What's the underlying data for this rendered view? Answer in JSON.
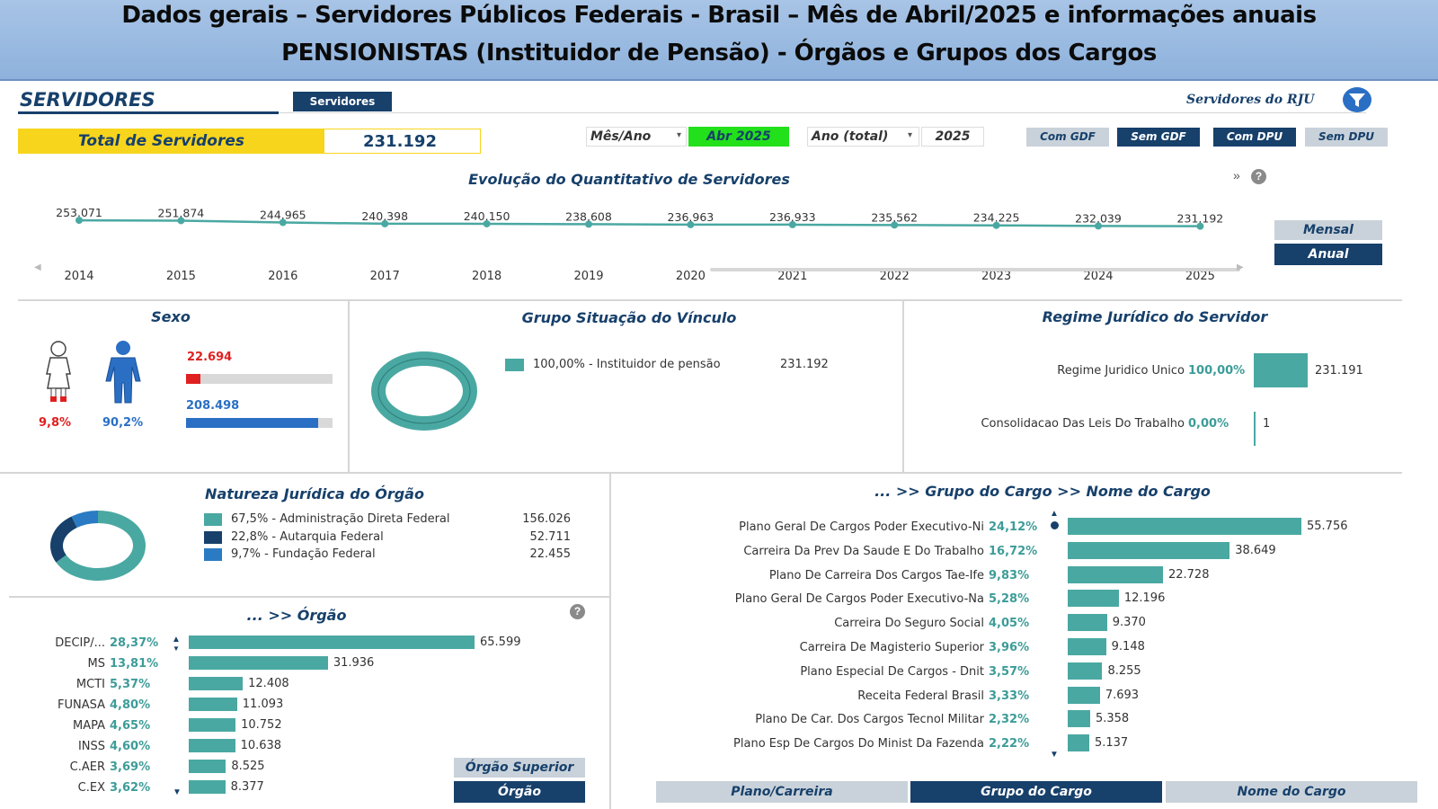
{
  "banner": {
    "line1": "Dados gerais – Servidores Públicos Federais - Brasil – Mês de Abril/2025 e informações anuais",
    "line2": "PENSIONISTAS (Instituidor de Pensão) - Órgãos e Grupos dos Cargos"
  },
  "header": {
    "title": "SERVIDORES",
    "tab_label": "Servidores",
    "rju_label": "Servidores do RJU",
    "total_label": "Total de Servidores",
    "total_value": "231.192",
    "mes_ano_label": "Mês/Ano",
    "mes_ano_value": "Abr 2025",
    "ano_label": "Ano (total)",
    "ano_value": "2025",
    "buttons": [
      "Com GDF",
      "Sem GDF",
      "Com DPU",
      "Sem DPU"
    ],
    "colors": {
      "navy": "#17406b",
      "teal": "#4aa8a2",
      "yellow": "#f7d51d",
      "green": "#22e01a"
    }
  },
  "evolucao": {
    "title": "Evolução do Quantitativo de Servidores",
    "mensal_label": "Mensal",
    "anual_label": "Anual",
    "expand_glyph": "»",
    "help_glyph": "?",
    "years": [
      "2014",
      "2015",
      "2016",
      "2017",
      "2018",
      "2019",
      "2020",
      "2021",
      "2022",
      "2023",
      "2024",
      "2025"
    ],
    "labels": [
      "253.071",
      "251.874",
      "244.965",
      "240.398",
      "240.150",
      "238.608",
      "236.963",
      "236.933",
      "235.562",
      "234.225",
      "232.039",
      "231.192"
    ],
    "values": [
      253071,
      251874,
      244965,
      240398,
      240150,
      238608,
      236963,
      236933,
      235562,
      234225,
      232039,
      231192
    ]
  },
  "sexo": {
    "title": "Sexo",
    "female_count": "22.694",
    "male_count": "208.498",
    "female_pct": "9,8%",
    "male_pct": "90,2%",
    "female_share": 0.098,
    "male_share": 0.902,
    "female_color": "#e02020",
    "male_color": "#2a6fc4"
  },
  "vinculo": {
    "title": "Grupo Situação do Vínculo",
    "legend_label": "100,00% - Instituidor de pensão",
    "legend_value": "231.192"
  },
  "regime": {
    "title": "Regime Jurídico do Servidor",
    "rows": [
      {
        "label": "Regime Juridico Unico",
        "pct": "100,00%",
        "value": "231.191",
        "share": 1.0
      },
      {
        "label": "Consolidacao Das Leis Do Trabalho",
        "pct": "0,00%",
        "value": "1",
        "share": 0.0
      }
    ]
  },
  "natureza": {
    "title": "Natureza Jurídica do Órgão",
    "items": [
      {
        "label": "67,5% - Administração Direta Federal",
        "value": "156.026",
        "share": 0.675,
        "color": "#4aa8a2"
      },
      {
        "label": "22,8% - Autarquia Federal",
        "value": "52.711",
        "share": 0.228,
        "color": "#17406b"
      },
      {
        "label": "9,7% - Fundação Federal",
        "value": "22.455",
        "share": 0.097,
        "color": "#2a7bc4"
      }
    ]
  },
  "orgao": {
    "title": "... >> Órgão",
    "help_glyph": "?",
    "rows": [
      {
        "label": "DECIP/...",
        "pct": "28,37%",
        "value": "65.599",
        "n": 65599
      },
      {
        "label": "MS",
        "pct": "13,81%",
        "value": "31.936",
        "n": 31936
      },
      {
        "label": "MCTI",
        "pct": "5,37%",
        "value": "12.408",
        "n": 12408
      },
      {
        "label": "FUNASA",
        "pct": "4,80%",
        "value": "11.093",
        "n": 11093
      },
      {
        "label": "MAPA",
        "pct": "4,65%",
        "value": "10.752",
        "n": 10752
      },
      {
        "label": "INSS",
        "pct": "4,60%",
        "value": "10.638",
        "n": 10638
      },
      {
        "label": "C.AER",
        "pct": "3,69%",
        "value": "8.525",
        "n": 8525
      },
      {
        "label": "C.EX",
        "pct": "3,62%",
        "value": "8.377",
        "n": 8377
      }
    ],
    "btn_superior": "Órgão Superior",
    "btn_orgao": "Órgão"
  },
  "cargo": {
    "title": "... >> Grupo do Cargo >> Nome do Cargo",
    "rows": [
      {
        "label": "Plano Geral De Cargos Poder Executivo-Ni",
        "pct": "24,12%",
        "value": "55.756",
        "n": 55756
      },
      {
        "label": "Carreira Da Prev Da Saude E Do Trabalho",
        "pct": "16,72%",
        "value": "38.649",
        "n": 38649
      },
      {
        "label": "Plano De Carreira Dos Cargos Tae-Ife",
        "pct": "9,83%",
        "value": "22.728",
        "n": 22728
      },
      {
        "label": "Plano Geral De Cargos Poder Executivo-Na",
        "pct": "5,28%",
        "value": "12.196",
        "n": 12196
      },
      {
        "label": "Carreira Do Seguro Social",
        "pct": "4,05%",
        "value": "9.370",
        "n": 9370
      },
      {
        "label": "Carreira De Magisterio Superior",
        "pct": "3,96%",
        "value": "9.148",
        "n": 9148
      },
      {
        "label": "Plano Especial De Cargos - Dnit",
        "pct": "3,57%",
        "value": "8.255",
        "n": 8255
      },
      {
        "label": "Receita Federal Brasil",
        "pct": "3,33%",
        "value": "7.693",
        "n": 7693
      },
      {
        "label": "Plano De Car. Dos Cargos Tecnol Militar",
        "pct": "2,32%",
        "value": "5.358",
        "n": 5358
      },
      {
        "label": "Plano Esp De Cargos Do Minist Da Fazenda",
        "pct": "2,22%",
        "value": "5.137",
        "n": 5137
      }
    ],
    "tabs": [
      "Plano/Carreira",
      "Grupo do Cargo",
      "Nome do Cargo"
    ]
  }
}
